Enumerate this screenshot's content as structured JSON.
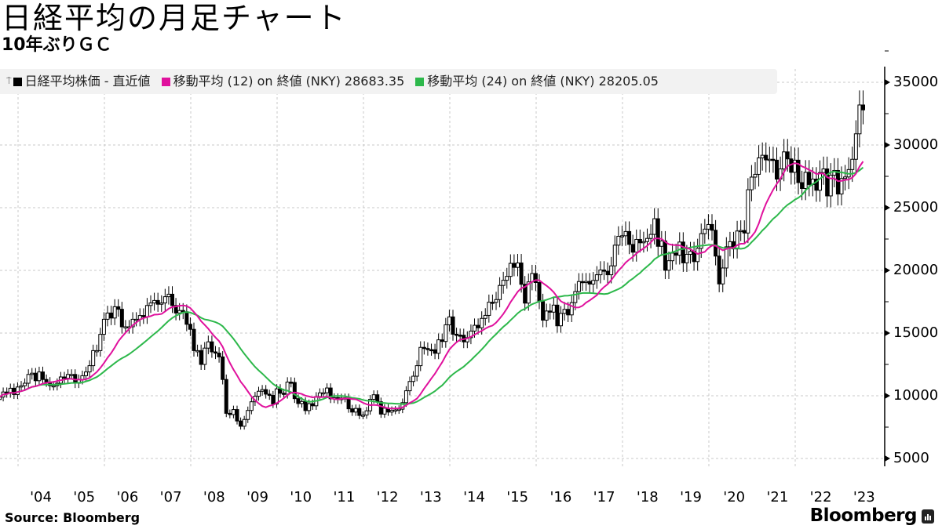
{
  "header": {
    "title": "日経平均の月足チャート",
    "subtitle": "10年ぶりＧＣ"
  },
  "legend": {
    "pin_icon": "pin-icon",
    "items": [
      {
        "label": "日経平均株価 - 直近値",
        "color": "#000000"
      },
      {
        "label": "移動平均 (12)  on 終値 (NKY) 28683.35",
        "color": "#e0119d"
      },
      {
        "label": "移動平均 (24)  on 終値 (NKY) 28205.05",
        "color": "#2db84b"
      }
    ]
  },
  "footer": {
    "source": "Source:  Bloomberg",
    "brand": "Bloomberg",
    "brand_icon": "bloomberg-terminal-icon"
  },
  "colors": {
    "candle": "#000000",
    "ma12": "#e0119d",
    "ma24": "#2db84b",
    "grid": "#c8c8c8",
    "legend_bg": "#f2f2f2"
  },
  "chart_data": {
    "type": "candlestick",
    "title": "日経平均の月足チャート",
    "subtitle": "10年ぶりＧＣ",
    "xlabel": "",
    "ylabel": "",
    "ylim": [
      3500,
      36000
    ],
    "y_ticks": [
      5000,
      10000,
      15000,
      20000,
      25000,
      30000,
      35000
    ],
    "x_tick_labels": [
      "'04",
      "'05",
      "'06",
      "'07",
      "'08",
      "'09",
      "'10",
      "'11",
      "'12",
      "'13",
      "'14",
      "'15",
      "'16",
      "'17",
      "'18",
      "'19",
      "'20",
      "'21",
      "'22",
      "'23"
    ],
    "grid": true,
    "legend_position": "top-left",
    "start": "2003-07",
    "frequency": "monthly",
    "series": [
      {
        "name": "日経平均株価 - 直近値",
        "type": "candlestick",
        "close_by_year": {
          "2003": [
            9900,
            10300,
            10200,
            10600,
            10100,
            10700
          ],
          "2004": [
            10800,
            11000,
            11700,
            11800,
            11200,
            11900,
            11300,
            11100,
            10800,
            10800,
            11000,
            11500
          ],
          "2005": [
            11400,
            11700,
            11700,
            11000,
            11300,
            11600,
            11900,
            12400,
            13600,
            13600,
            14900,
            16100
          ],
          "2006": [
            16600,
            16200,
            17100,
            16900,
            15500,
            15500,
            15500,
            16100,
            16100,
            16400,
            16300,
            17200
          ],
          "2007": [
            17400,
            17600,
            17300,
            17400,
            17900,
            18100,
            17200,
            16600,
            16800,
            16700,
            15700,
            15300
          ],
          "2008": [
            13600,
            13600,
            12500,
            13800,
            14300,
            13500,
            13400,
            13100,
            11300,
            8600,
            8500,
            8900
          ],
          "2009": [
            7990,
            7570,
            8110,
            8830,
            9520,
            9960,
            10360,
            10490,
            10130,
            10030,
            9350,
            10550
          ],
          "2010": [
            10200,
            10130,
            11090,
            11060,
            9770,
            9380,
            9540,
            8820,
            9370,
            9200,
            9940,
            10230
          ],
          "2011": [
            10240,
            10620,
            9760,
            9850,
            9690,
            9820,
            9830,
            8960,
            8700,
            8990,
            8430,
            8460
          ],
          "2012": [
            8800,
            9720,
            10080,
            9520,
            8540,
            9010,
            8700,
            8840,
            8870,
            8930,
            9450,
            10400
          ],
          "2013": [
            11140,
            11560,
            12400,
            13860,
            13770,
            13680,
            13670,
            13390,
            14460,
            14330,
            15660,
            16290
          ],
          "2014": [
            14910,
            14840,
            14830,
            14300,
            14630,
            15160,
            15620,
            15420,
            16170,
            16410,
            17460,
            17450
          ],
          "2015": [
            17670,
            18800,
            19210,
            19520,
            20560,
            20240,
            20590,
            18890,
            17390,
            19080,
            19750,
            19030
          ],
          "2016": [
            17520,
            16030,
            16760,
            16670,
            17230,
            15580,
            16570,
            16890,
            16450,
            17430,
            18310,
            19110
          ],
          "2017": [
            19040,
            19120,
            18910,
            19200,
            19650,
            20030,
            19930,
            19650,
            20360,
            22010,
            22720,
            22760
          ],
          "2018": [
            23100,
            22070,
            21450,
            22470,
            22200,
            22300,
            22550,
            22870,
            24120,
            21920,
            22350,
            20010
          ],
          "2019": [
            20770,
            21380,
            21210,
            22260,
            20600,
            21280,
            21520,
            20700,
            21760,
            22930,
            23290,
            23660
          ],
          "2020": [
            23200,
            21140,
            18920,
            20190,
            21880,
            22290,
            21710,
            23140,
            23180,
            22980,
            26430,
            27440
          ],
          "2021": [
            27660,
            28970,
            29180,
            28810,
            28860,
            28790,
            27280,
            28090,
            29450,
            28890,
            27820,
            28790
          ],
          "2022": [
            27000,
            26530,
            27820,
            26850,
            27280,
            26390,
            27800,
            28090,
            25940,
            27590,
            27970,
            26090
          ],
          "2023": [
            27330,
            27450,
            28040,
            28860,
            30890,
            33190,
            32800
          ]
        }
      },
      {
        "name": "移動平均 (12) on 終値 (NKY)",
        "type": "line",
        "last": 28683.35
      },
      {
        "name": "移動平均 (24) on 終値 (NKY)",
        "type": "line",
        "last": 28205.05
      }
    ]
  }
}
